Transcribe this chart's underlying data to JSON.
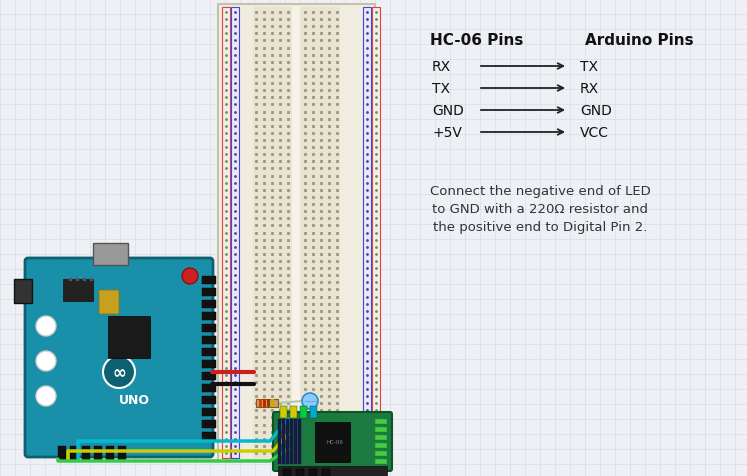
{
  "bg_color": "#eef0f5",
  "grid_color": "#d8dce8",
  "header_hc06": "HC-06 Pins",
  "header_arduino": "Arduino Pins",
  "connections": [
    {
      "hc06": "RX",
      "arduino": "TX"
    },
    {
      "hc06": "TX",
      "arduino": "RX"
    },
    {
      "hc06": "GND",
      "arduino": "GND"
    },
    {
      "hc06": "+5V",
      "arduino": "VCC"
    }
  ],
  "note_line1": "Connect the negative end of LED",
  "note_line2": "to GND with a 220Ω resistor and",
  "note_line3": "the positive end to Digital Pin 2.",
  "arduino_color": "#1a8faa",
  "arduino_dark": "#0d6070",
  "breadboard_color": "#f0ece0",
  "breadboard_border": "#c8c0a8",
  "hc06_color": "#1a7a40",
  "hc06_dark": "#0d5520"
}
